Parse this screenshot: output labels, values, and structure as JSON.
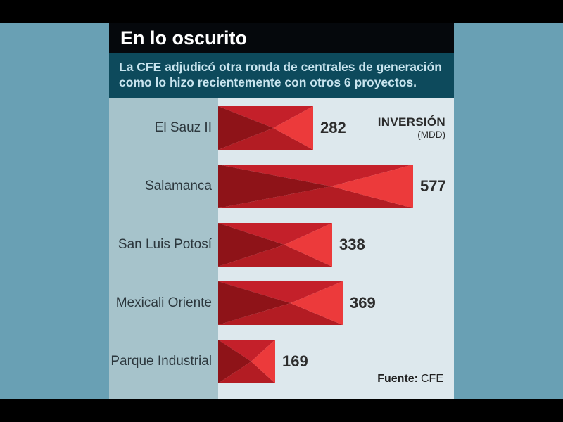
{
  "page": {
    "letterbox_color": "#000000",
    "background_color": "#69a0b4"
  },
  "card": {
    "title": "En lo oscurito",
    "title_bg": "#05080c",
    "title_color": "#ffffff",
    "subtitle_line1": "La CFE adjudicó otra ronda de centrales de generación",
    "subtitle_line2": "como lo hizo recientemente con otros 6 proyectos.",
    "subtitle_bg": "#0d4a5c",
    "subtitle_color": "#c8e4ee"
  },
  "chart_data": {
    "type": "bar",
    "orientation": "horizontal",
    "title": "En lo oscurito",
    "unit_label": "INVERSIÓN",
    "unit_sublabel": "(MDD)",
    "categories": [
      "El Sauz II",
      "Salamanca",
      "San Luis Potosí",
      "Mexicali Oriente",
      "Parque Industrial"
    ],
    "values": [
      282,
      577,
      338,
      369,
      169
    ],
    "value_range": [
      0,
      577
    ],
    "grid": false,
    "legend": false,
    "source_label": "Fuente:",
    "source_value": "CFE",
    "colors": {
      "bar_top": "#c4202a",
      "bar_left": "#8e1318",
      "bar_bottom": "#b31c23",
      "bar_right": "#ec3a3b",
      "label_column_bg": "#a6c3cb",
      "plot_bg": "#dde8ed",
      "category_text": "#2c373d",
      "value_text": "#2d2d2d"
    }
  }
}
